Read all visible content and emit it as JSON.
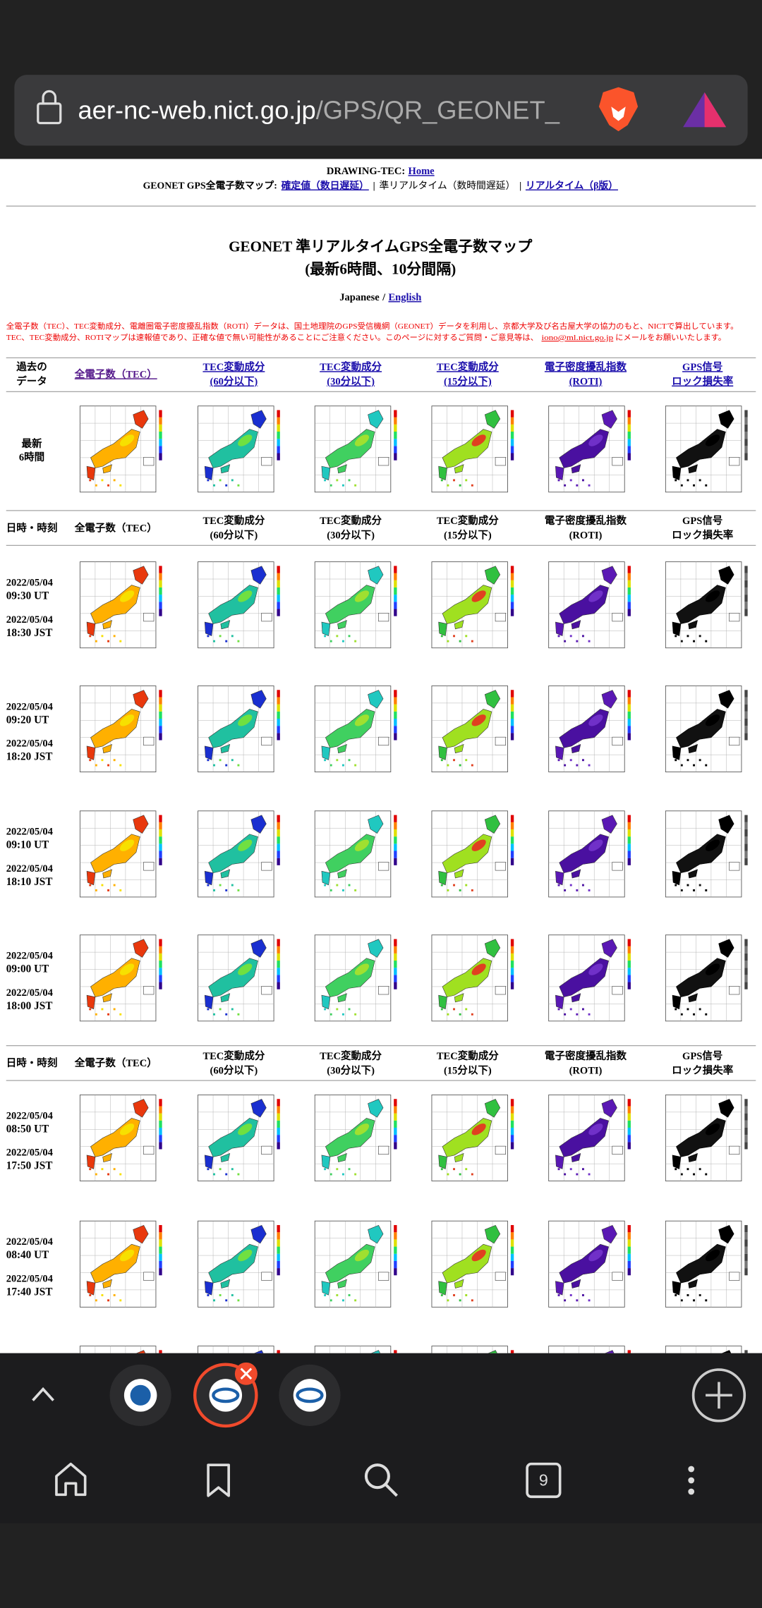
{
  "browser": {
    "url_host": "aer-nc-web.nict.go.jp",
    "url_path": "/GPS/QR_GEONET_",
    "tab_count": "9"
  },
  "header": {
    "top_prefix": "DRAWING-TEC:",
    "top_link": "Home",
    "nav_prefix": "GEONET GPS全電子数マップ:",
    "separator": "|",
    "nav_items": [
      {
        "text": "確定値（数日遅延）",
        "link": true
      },
      {
        "text": "準リアルタイム（数時間遅延）",
        "link": false
      },
      {
        "text": "リアルタイム（β版）",
        "link": true
      }
    ]
  },
  "title": [
    "GEONET 準リアルタイムGPS全電子数マップ",
    "(最新6時間、10分間隔)"
  ],
  "language": {
    "current": "Japanese",
    "separator": "/",
    "other": "English"
  },
  "notice": {
    "line1": "全電子数（TEC）、TEC変動成分、電離圏電子密度擾乱指数（ROTI）データは、国土地理院のGPS受信機網（GEONET）データを利用し、京都大学及び名古屋大学の協力のもと、NICTで算出しています。",
    "line2": "TEC、TEC変動成分、ROTIマップは速報値であり、正確な値で無い可能性があることにご注意ください。このページに対するご質問・ご意見等は、",
    "email": "iono@ml.nict.go.jp",
    "line2_end": "にメールをお願いいたします。"
  },
  "table": {
    "first_header": [
      [
        "過去の",
        "データ"
      ],
      [
        "全電子数（TEC）"
      ],
      [
        "TEC変動成分",
        "(60分以下)"
      ],
      [
        "TEC変動成分",
        "(30分以下)"
      ],
      [
        "TEC変動成分",
        "(15分以下)"
      ],
      [
        "電子密度擾乱指数",
        "(ROTI)"
      ],
      [
        "GPS信号",
        "ロック損失率"
      ]
    ],
    "latest_label": [
      "最新",
      "6時間"
    ],
    "groups": [
      {
        "header": [
          [
            "日時・時刻"
          ],
          [
            "全電子数（TEC）"
          ],
          [
            "TEC変動成分",
            "(60分以下)"
          ],
          [
            "TEC変動成分",
            "(30分以下)"
          ],
          [
            "TEC変動成分",
            "(15分以下)"
          ],
          [
            "電子密度擾乱指数",
            "(ROTI)"
          ],
          [
            "GPS信号",
            "ロック損失率"
          ]
        ],
        "rows": [
          {
            "ut_date": "2022/05/04",
            "ut_time": "09:30 UT",
            "jst_date": "2022/05/04",
            "jst_time": "18:30 JST"
          },
          {
            "ut_date": "2022/05/04",
            "ut_time": "09:20 UT",
            "jst_date": "2022/05/04",
            "jst_time": "18:20 JST"
          },
          {
            "ut_date": "2022/05/04",
            "ut_time": "09:10 UT",
            "jst_date": "2022/05/04",
            "jst_time": "18:10 JST"
          },
          {
            "ut_date": "2022/05/04",
            "ut_time": "09:00 UT",
            "jst_date": "2022/05/04",
            "jst_time": "18:00 JST"
          }
        ]
      },
      {
        "header": [
          [
            "日時・時刻"
          ],
          [
            "全電子数（TEC）"
          ],
          [
            "TEC変動成分",
            "(60分以下)"
          ],
          [
            "TEC変動成分",
            "(30分以下)"
          ],
          [
            "TEC変動成分",
            "(15分以下)"
          ],
          [
            "電子密度擾乱指数",
            "(ROTI)"
          ],
          [
            "GPS信号",
            "ロック損失率"
          ]
        ],
        "rows": [
          {
            "ut_date": "2022/05/04",
            "ut_time": "08:50 UT",
            "jst_date": "2022/05/04",
            "jst_time": "17:50 JST"
          },
          {
            "ut_date": "2022/05/04",
            "ut_time": "08:40 UT",
            "jst_date": "2022/05/04",
            "jst_time": "17:40 JST"
          }
        ]
      }
    ]
  }
}
